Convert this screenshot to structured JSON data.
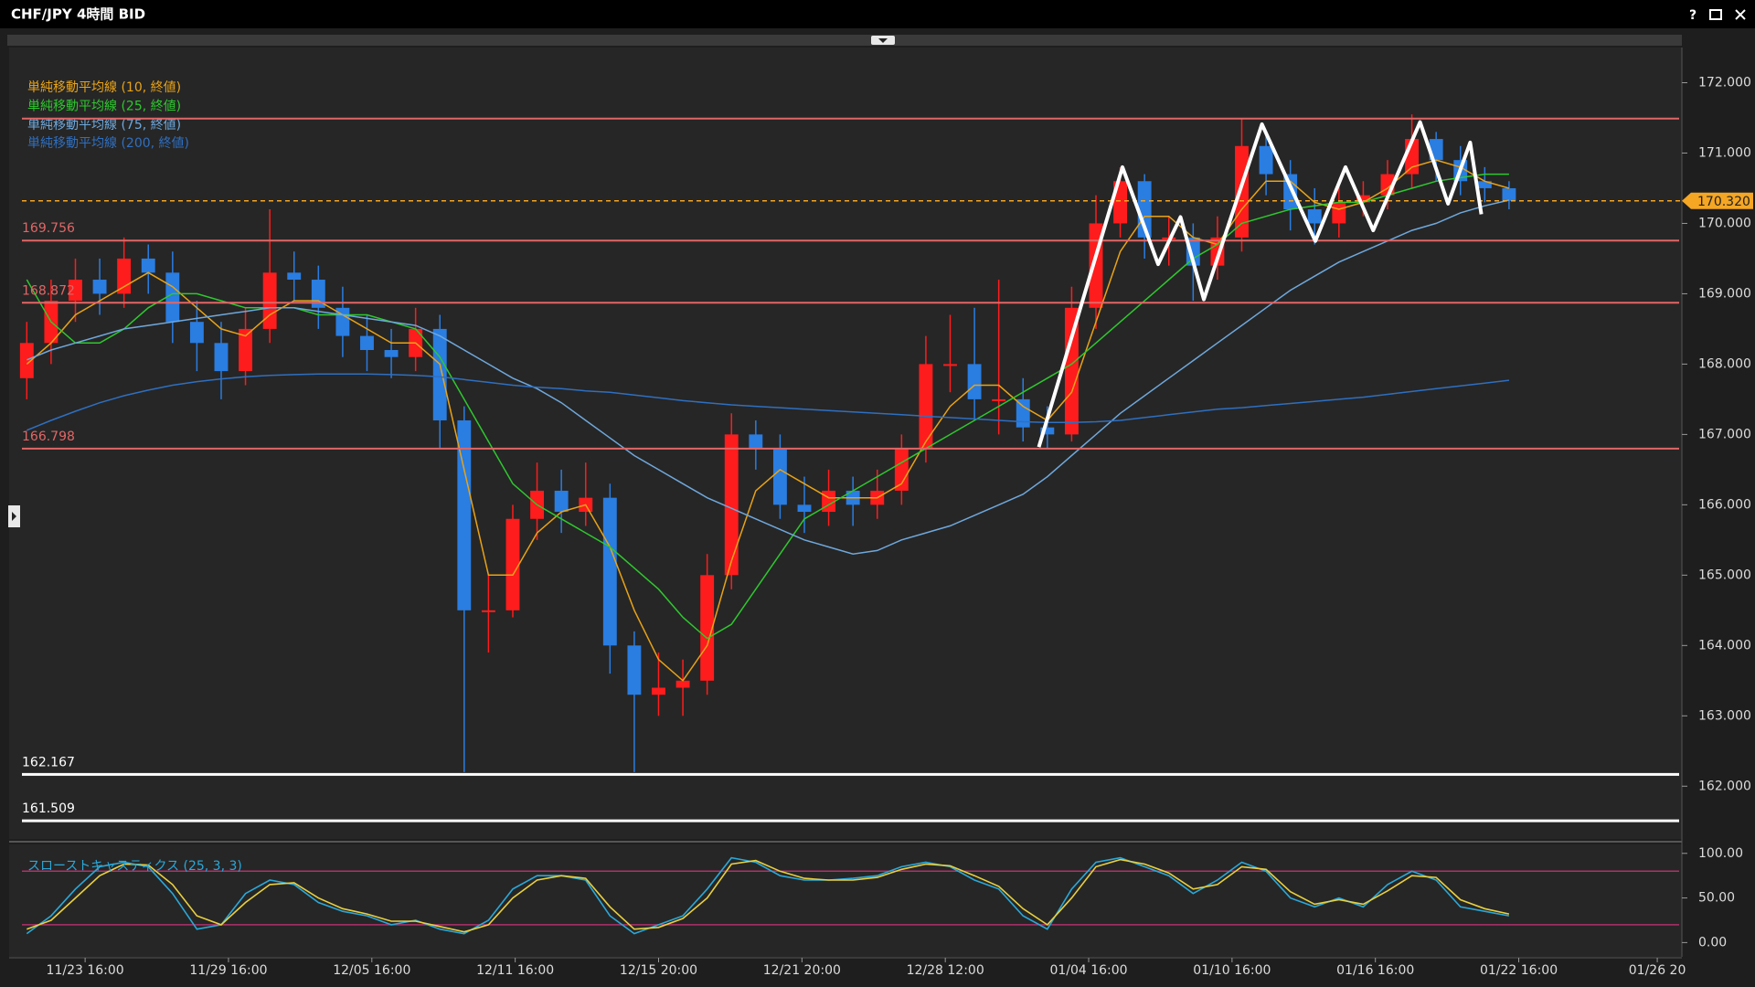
{
  "window_help": "?",
  "chart_data": {
    "type": "candlestick",
    "title": "CHF/JPY 4時間 BID",
    "xlim": [
      -0.2,
      68
    ],
    "xticks": [
      {
        "value": 2.4,
        "label": "11/23 16:00"
      },
      {
        "value": 8.3,
        "label": "11/29 16:00"
      },
      {
        "value": 14.2,
        "label": "12/05 16:00"
      },
      {
        "value": 20.1,
        "label": "12/11 16:00"
      },
      {
        "value": 26.0,
        "label": "12/15 20:00"
      },
      {
        "value": 31.9,
        "label": "12/21 20:00"
      },
      {
        "value": 37.8,
        "label": "12/28 12:00"
      },
      {
        "value": 43.7,
        "label": "01/04 16:00"
      },
      {
        "value": 49.6,
        "label": "01/10 16:00"
      },
      {
        "value": 55.5,
        "label": "01/16 16:00"
      },
      {
        "value": 61.4,
        "label": "01/22 16:00"
      },
      {
        "value": 67.1,
        "label": "01/26 20"
      }
    ],
    "ylim": [
      161.25,
      172.5
    ],
    "yticks": [
      {
        "value": 172,
        "label": "172.000"
      },
      {
        "value": 171,
        "label": "171.000"
      },
      {
        "value": 170,
        "label": "170.000"
      },
      {
        "value": 169,
        "label": "169.000"
      },
      {
        "value": 168,
        "label": "168.000"
      },
      {
        "value": 167,
        "label": "167.000"
      },
      {
        "value": 166,
        "label": "166.000"
      },
      {
        "value": 165,
        "label": "165.000"
      },
      {
        "value": 164,
        "label": "164.000"
      },
      {
        "value": 163,
        "label": "163.000"
      },
      {
        "value": 162,
        "label": "162.000"
      }
    ],
    "up_color": "#ff1c1c",
    "down_color": "#2a7de1",
    "open": [
      167.8,
      168.3,
      168.9,
      169.2,
      169.0,
      169.5,
      169.3,
      168.6,
      168.3,
      167.9,
      168.5,
      169.3,
      169.2,
      168.8,
      168.4,
      168.2,
      168.1,
      168.5,
      167.2,
      164.5,
      164.5,
      165.8,
      166.2,
      165.9,
      166.1,
      164.0,
      163.3,
      163.4,
      163.5,
      165.0,
      167.0,
      166.8,
      166.0,
      165.9,
      166.2,
      166.0,
      166.2,
      166.8,
      168.0,
      168.0,
      167.5,
      167.5,
      167.1,
      167.0,
      168.8,
      170.0,
      170.6,
      169.8,
      169.8,
      169.4,
      169.8,
      171.1,
      170.7,
      170.2,
      170.0,
      170.3,
      170.4,
      170.7,
      171.2,
      170.9,
      170.6,
      170.5
    ],
    "high": [
      168.6,
      169.2,
      169.5,
      169.5,
      169.8,
      169.7,
      169.6,
      168.9,
      168.6,
      168.8,
      170.2,
      169.6,
      169.4,
      169.1,
      168.7,
      168.5,
      168.8,
      168.7,
      167.4,
      165.0,
      166.0,
      166.6,
      166.5,
      166.6,
      166.3,
      164.2,
      163.9,
      163.8,
      165.3,
      167.3,
      167.2,
      167.0,
      166.4,
      166.5,
      166.4,
      166.5,
      167.0,
      168.4,
      168.7,
      168.8,
      169.2,
      167.8,
      167.4,
      169.1,
      170.4,
      170.8,
      170.7,
      170.1,
      170.0,
      170.1,
      171.5,
      171.3,
      170.9,
      170.5,
      170.6,
      170.6,
      170.9,
      171.55,
      171.3,
      171.1,
      170.8,
      170.6
    ],
    "low": [
      167.5,
      168.0,
      168.6,
      168.7,
      168.8,
      169.0,
      168.3,
      167.9,
      167.5,
      167.7,
      168.3,
      168.9,
      168.5,
      168.1,
      167.9,
      167.8,
      167.9,
      166.8,
      162.2,
      163.9,
      164.4,
      165.5,
      165.6,
      165.7,
      163.6,
      162.2,
      163.0,
      163.0,
      163.3,
      164.8,
      166.5,
      165.8,
      165.6,
      165.7,
      165.7,
      165.8,
      166.0,
      166.6,
      167.6,
      167.2,
      167.0,
      166.9,
      166.8,
      166.9,
      168.5,
      169.8,
      169.5,
      169.4,
      168.9,
      169.2,
      169.6,
      170.4,
      169.9,
      169.7,
      169.8,
      170.1,
      170.2,
      170.5,
      170.6,
      170.4,
      170.3,
      170.2
    ],
    "close": [
      168.3,
      168.9,
      169.2,
      169.0,
      169.5,
      169.3,
      168.6,
      168.3,
      167.9,
      168.5,
      169.3,
      169.2,
      168.8,
      168.4,
      168.2,
      168.1,
      168.5,
      167.2,
      164.5,
      164.5,
      165.8,
      166.2,
      165.9,
      166.1,
      164.0,
      163.3,
      163.4,
      163.5,
      165.0,
      167.0,
      166.8,
      166.0,
      165.9,
      166.2,
      166.0,
      166.2,
      166.8,
      168.0,
      168.0,
      167.5,
      167.5,
      167.1,
      167.0,
      168.8,
      170.0,
      170.6,
      169.8,
      169.8,
      169.4,
      169.8,
      171.1,
      170.7,
      170.2,
      170.0,
      170.3,
      170.4,
      170.7,
      171.2,
      170.9,
      170.6,
      170.5,
      170.32
    ],
    "series": [
      {
        "name": "単純移動平均線 (10, 終値)",
        "color": "#e8a317",
        "values": [
          168.0,
          168.3,
          168.7,
          168.9,
          169.1,
          169.3,
          169.1,
          168.8,
          168.5,
          168.4,
          168.7,
          168.9,
          168.9,
          168.7,
          168.5,
          168.3,
          168.3,
          168.0,
          166.5,
          165.0,
          165.0,
          165.6,
          165.9,
          166.0,
          165.4,
          164.5,
          163.8,
          163.5,
          164.0,
          165.2,
          166.2,
          166.5,
          166.3,
          166.1,
          166.1,
          166.1,
          166.3,
          166.9,
          167.4,
          167.7,
          167.7,
          167.4,
          167.2,
          167.6,
          168.6,
          169.6,
          170.1,
          170.1,
          169.8,
          169.7,
          170.2,
          170.6,
          170.6,
          170.3,
          170.2,
          170.3,
          170.5,
          170.8,
          170.9,
          170.8,
          170.6,
          170.5
        ]
      },
      {
        "name": "単純移動平均線 (25, 終値)",
        "color": "#2ec82e",
        "values": [
          169.2,
          168.6,
          168.3,
          168.3,
          168.5,
          168.8,
          169.0,
          169.0,
          168.9,
          168.8,
          168.8,
          168.8,
          168.7,
          168.7,
          168.7,
          168.6,
          168.5,
          168.1,
          167.5,
          166.9,
          166.3,
          166.0,
          165.8,
          165.6,
          165.4,
          165.1,
          164.8,
          164.4,
          164.1,
          164.3,
          164.8,
          165.3,
          165.8,
          166.0,
          166.2,
          166.4,
          166.6,
          166.8,
          167.0,
          167.2,
          167.4,
          167.6,
          167.8,
          168.0,
          168.3,
          168.6,
          168.9,
          169.2,
          169.5,
          169.7,
          170.0,
          170.1,
          170.2,
          170.25,
          170.3,
          170.3,
          170.4,
          170.5,
          170.6,
          170.65,
          170.7,
          170.7
        ]
      },
      {
        "name": "単純移動平均線 (75, 終値)",
        "color": "#6fa8dc",
        "values": [
          168.06,
          168.2,
          168.3,
          168.4,
          168.5,
          168.55,
          168.6,
          168.65,
          168.7,
          168.75,
          168.8,
          168.8,
          168.75,
          168.7,
          168.65,
          168.6,
          168.55,
          168.4,
          168.2,
          168.0,
          167.8,
          167.65,
          167.45,
          167.2,
          166.95,
          166.7,
          166.5,
          166.3,
          166.1,
          165.95,
          165.8,
          165.65,
          165.5,
          165.4,
          165.3,
          165.35,
          165.5,
          165.6,
          165.7,
          165.85,
          166.0,
          166.15,
          166.4,
          166.7,
          167.0,
          167.3,
          167.55,
          167.8,
          168.05,
          168.3,
          168.55,
          168.8,
          169.05,
          169.25,
          169.45,
          169.6,
          169.75,
          169.9,
          170.0,
          170.15,
          170.25,
          170.33
        ]
      },
      {
        "name": "単純移動平均線 (200, 終値)",
        "color": "#2f6fc0",
        "values": [
          167.06,
          167.2,
          167.33,
          167.45,
          167.55,
          167.63,
          167.7,
          167.75,
          167.79,
          167.82,
          167.84,
          167.85,
          167.86,
          167.86,
          167.86,
          167.85,
          167.84,
          167.82,
          167.78,
          167.74,
          167.7,
          167.67,
          167.65,
          167.62,
          167.6,
          167.56,
          167.52,
          167.48,
          167.45,
          167.42,
          167.4,
          167.38,
          167.36,
          167.34,
          167.32,
          167.3,
          167.28,
          167.26,
          167.24,
          167.22,
          167.2,
          167.18,
          167.17,
          167.17,
          167.18,
          167.2,
          167.24,
          167.28,
          167.32,
          167.36,
          167.38,
          167.41,
          167.44,
          167.47,
          167.5,
          167.53,
          167.57,
          167.61,
          167.65,
          167.69,
          167.73,
          167.77
        ]
      }
    ],
    "levels": [
      {
        "value": 171.49,
        "color": "#e06666"
      },
      {
        "value": 169.756,
        "label": "169.756",
        "color": "#e06666"
      },
      {
        "value": 168.872,
        "label": "168.872",
        "color": "#e06666"
      },
      {
        "value": 166.798,
        "label": "166.798",
        "color": "#e06666"
      },
      {
        "value": 162.167,
        "label": "162.167",
        "color": "#ffffff"
      },
      {
        "value": 161.509,
        "label": "161.509",
        "color": "#ffffff"
      }
    ],
    "last_price": {
      "value": 170.32,
      "label": "170.320",
      "color": "#f5a623"
    },
    "drawings": {
      "color": "#ffffff",
      "x": [
        41.65,
        45.09,
        46.56,
        47.48,
        48.44,
        50.83,
        53.03,
        54.27,
        55.41,
        57.34,
        58.49,
        59.4,
        59.86
      ],
      "y": [
        166.82,
        170.8,
        169.42,
        170.09,
        168.92,
        171.41,
        169.75,
        170.8,
        169.9,
        171.44,
        170.28,
        171.15,
        170.13
      ]
    },
    "indicator": {
      "type": "line",
      "title": "スローストキャスティクス (25, 3, 3)",
      "ylim": [
        -16,
        110
      ],
      "yticks": [
        {
          "value": 100,
          "label": "100.00"
        },
        {
          "value": 50,
          "label": "50.00"
        },
        {
          "value": 0,
          "label": "0.00"
        }
      ],
      "levels": [
        80,
        20
      ],
      "level_color": "#b0306a",
      "series": [
        {
          "color": "#2aa8d8",
          "values": [
            10,
            30,
            60,
            85,
            90,
            85,
            55,
            15,
            20,
            55,
            70,
            65,
            45,
            35,
            30,
            20,
            25,
            15,
            10,
            25,
            60,
            75,
            75,
            70,
            30,
            10,
            20,
            30,
            60,
            95,
            90,
            75,
            70,
            70,
            72,
            75,
            85,
            90,
            85,
            70,
            60,
            30,
            15,
            60,
            90,
            95,
            85,
            75,
            55,
            70,
            90,
            80,
            50,
            40,
            50,
            40,
            65,
            80,
            70,
            40,
            35,
            30
          ]
        },
        {
          "color": "#e8d040",
          "values": [
            15,
            25,
            50,
            75,
            88,
            87,
            65,
            30,
            20,
            45,
            65,
            67,
            50,
            38,
            32,
            24,
            24,
            18,
            12,
            20,
            50,
            70,
            75,
            72,
            40,
            15,
            17,
            27,
            50,
            88,
            92,
            80,
            72,
            70,
            70,
            73,
            82,
            88,
            86,
            75,
            63,
            38,
            20,
            50,
            85,
            93,
            88,
            78,
            60,
            65,
            85,
            82,
            57,
            43,
            48,
            43,
            58,
            75,
            73,
            48,
            38,
            32
          ]
        }
      ]
    }
  }
}
